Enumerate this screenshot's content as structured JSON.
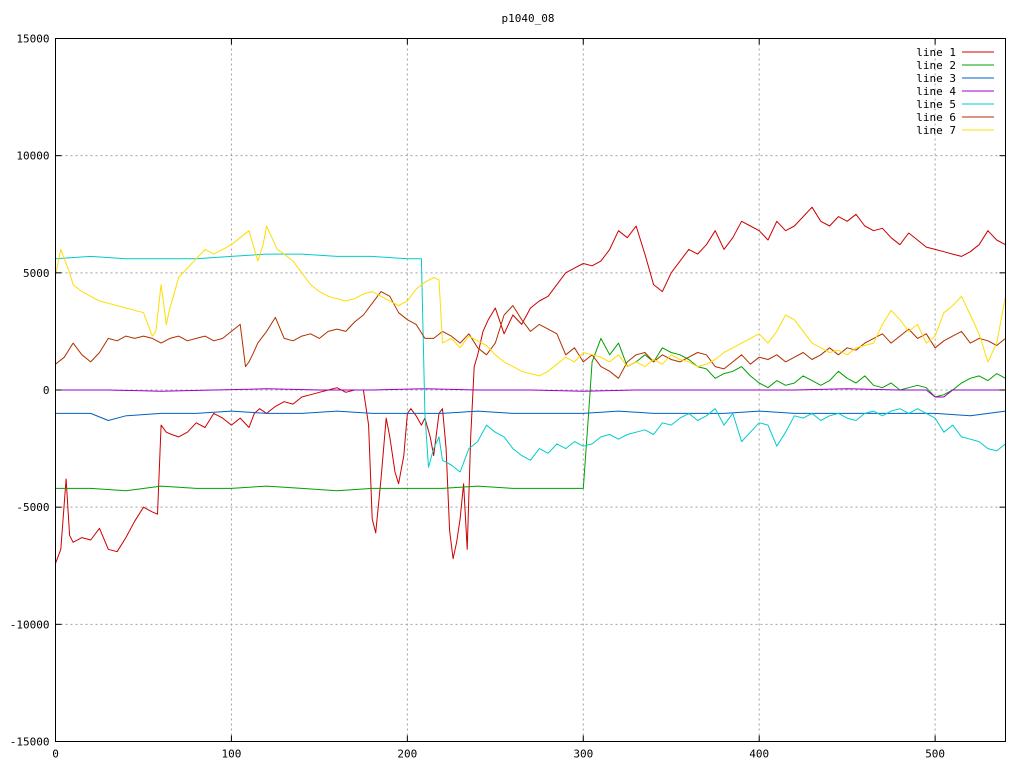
{
  "chart_data": {
    "type": "line",
    "title": "p1040_08",
    "xlabel": "",
    "ylabel": "",
    "xlim": [
      0,
      540
    ],
    "ylim": [
      -15000,
      15000
    ],
    "grid": true,
    "legend_position": "top-right",
    "x_ticks": [
      0,
      100,
      200,
      300,
      400,
      500
    ],
    "x_tick_labels": [
      "0",
      "100",
      "200",
      "300",
      "400",
      "500"
    ],
    "y_ticks": [
      -15000,
      -10000,
      -5000,
      0,
      5000,
      10000,
      15000
    ],
    "y_tick_labels": [
      "-15000",
      "-10000",
      "-5000",
      "0",
      "5000",
      "10000",
      "15000"
    ],
    "series": [
      {
        "name": "line 1",
        "color": "#cc0000",
        "x": [
          0,
          3,
          6,
          8,
          10,
          15,
          20,
          25,
          30,
          35,
          40,
          45,
          50,
          55,
          58,
          60,
          63,
          66,
          70,
          75,
          80,
          85,
          90,
          95,
          100,
          105,
          110,
          113,
          116,
          120,
          125,
          130,
          135,
          140,
          145,
          150,
          155,
          160,
          165,
          170,
          175,
          178,
          180,
          182,
          185,
          188,
          190,
          193,
          195,
          198,
          200,
          202,
          205,
          208,
          210,
          213,
          215,
          218,
          220,
          222,
          224,
          226,
          228,
          230,
          232,
          234,
          236,
          238,
          240,
          243,
          246,
          250,
          255,
          260,
          265,
          270,
          275,
          280,
          285,
          290,
          295,
          300,
          305,
          310,
          315,
          320,
          325,
          330,
          335,
          340,
          345,
          350,
          355,
          360,
          365,
          370,
          375,
          380,
          385,
          390,
          395,
          400,
          405,
          410,
          415,
          420,
          425,
          430,
          435,
          440,
          445,
          450,
          455,
          460,
          465,
          470,
          475,
          480,
          485,
          490,
          495,
          500,
          505,
          510,
          515,
          520,
          525,
          530,
          535,
          540
        ],
        "y": [
          -7400,
          -6800,
          -3800,
          -6200,
          -6500,
          -6300,
          -6400,
          -5900,
          -6800,
          -6900,
          -6300,
          -5600,
          -5000,
          -5200,
          -5300,
          -1500,
          -1800,
          -1900,
          -2000,
          -1800,
          -1400,
          -1600,
          -1000,
          -1200,
          -1500,
          -1200,
          -1600,
          -1000,
          -800,
          -1000,
          -700,
          -500,
          -600,
          -300,
          -200,
          -100,
          0,
          100,
          -100,
          0,
          0,
          -1500,
          -5500,
          -6100,
          -3800,
          -1200,
          -2000,
          -3500,
          -4000,
          -2800,
          -1000,
          -800,
          -1100,
          -1500,
          -1200,
          -2000,
          -2800,
          -1000,
          -800,
          -2500,
          -6000,
          -7200,
          -6500,
          -5500,
          -4000,
          -6800,
          -2000,
          1000,
          1500,
          2500,
          3000,
          3500,
          2400,
          3200,
          2800,
          3500,
          3800,
          4000,
          4500,
          5000,
          5200,
          5400,
          5300,
          5500,
          6000,
          6800,
          6500,
          7000,
          5800,
          4500,
          4200,
          5000,
          5500,
          6000,
          5800,
          6200,
          6800,
          6000,
          6500,
          7200,
          7000,
          6800,
          6400,
          7200,
          6800,
          7000,
          7400,
          7800,
          7200,
          7000,
          7400,
          7200,
          7500,
          7000,
          6800,
          6900,
          6500,
          6200,
          6700,
          6400,
          6100,
          6000,
          5900,
          5800,
          5700,
          5900,
          6200,
          6800,
          6400,
          6200
        ]
      },
      {
        "name": "line 2",
        "color": "#00a000",
        "x": [
          0,
          20,
          40,
          60,
          80,
          100,
          120,
          140,
          160,
          180,
          200,
          220,
          240,
          260,
          280,
          300,
          303,
          305,
          310,
          315,
          320,
          325,
          330,
          335,
          340,
          345,
          350,
          355,
          360,
          365,
          370,
          375,
          380,
          385,
          390,
          395,
          400,
          405,
          410,
          415,
          420,
          425,
          430,
          435,
          440,
          445,
          450,
          455,
          460,
          465,
          470,
          475,
          480,
          485,
          490,
          495,
          500,
          505,
          510,
          515,
          520,
          525,
          530,
          535,
          540
        ],
        "y": [
          -4200,
          -4200,
          -4300,
          -4100,
          -4200,
          -4200,
          -4100,
          -4200,
          -4300,
          -4200,
          -4200,
          -4200,
          -4100,
          -4200,
          -4200,
          -4200,
          -1000,
          1200,
          2200,
          1500,
          2000,
          1000,
          1200,
          1500,
          1200,
          1800,
          1600,
          1500,
          1300,
          1000,
          900,
          500,
          700,
          800,
          1000,
          600,
          300,
          100,
          400,
          200,
          300,
          600,
          400,
          200,
          400,
          800,
          500,
          300,
          600,
          200,
          100,
          300,
          0,
          100,
          200,
          100,
          -300,
          -200,
          0,
          300,
          500,
          600,
          400,
          700,
          500
        ]
      },
      {
        "name": "line 3",
        "color": "#0060c0",
        "x": [
          0,
          20,
          30,
          40,
          60,
          80,
          100,
          120,
          140,
          160,
          180,
          200,
          220,
          240,
          260,
          280,
          300,
          320,
          340,
          360,
          380,
          400,
          420,
          440,
          460,
          480,
          500,
          520,
          540
        ],
        "y": [
          -1000,
          -1000,
          -1300,
          -1100,
          -1000,
          -1000,
          -900,
          -1000,
          -1000,
          -900,
          -1000,
          -1000,
          -1000,
          -900,
          -1000,
          -1000,
          -1000,
          -900,
          -1000,
          -1000,
          -1000,
          -900,
          -1000,
          -1000,
          -1000,
          -1000,
          -1000,
          -1100,
          -900
        ]
      },
      {
        "name": "line 4",
        "color": "#9900cc",
        "x": [
          0,
          30,
          60,
          90,
          120,
          150,
          180,
          210,
          240,
          270,
          300,
          330,
          360,
          390,
          420,
          450,
          480,
          495,
          500,
          505,
          510,
          540
        ],
        "y": [
          0,
          0,
          -50,
          0,
          50,
          0,
          0,
          50,
          0,
          0,
          -50,
          0,
          0,
          0,
          0,
          50,
          0,
          0,
          -300,
          -300,
          0,
          0
        ]
      },
      {
        "name": "line 5",
        "color": "#00cccc",
        "x": [
          0,
          20,
          40,
          60,
          80,
          100,
          120,
          140,
          160,
          180,
          200,
          208,
          210,
          212,
          215,
          218,
          220,
          225,
          230,
          235,
          240,
          245,
          250,
          255,
          260,
          265,
          270,
          275,
          280,
          285,
          290,
          295,
          300,
          305,
          310,
          315,
          320,
          325,
          330,
          335,
          340,
          345,
          350,
          355,
          360,
          365,
          370,
          375,
          380,
          385,
          390,
          395,
          400,
          405,
          410,
          415,
          420,
          425,
          430,
          435,
          440,
          445,
          450,
          455,
          460,
          465,
          470,
          475,
          480,
          485,
          490,
          495,
          500,
          505,
          510,
          515,
          520,
          525,
          530,
          535,
          540
        ],
        "y": [
          5600,
          5700,
          5600,
          5600,
          5600,
          5700,
          5800,
          5800,
          5700,
          5700,
          5600,
          5600,
          -1000,
          -3300,
          -2500,
          -2000,
          -3000,
          -3200,
          -3500,
          -2500,
          -2200,
          -1500,
          -1800,
          -2000,
          -2500,
          -2800,
          -3000,
          -2500,
          -2700,
          -2300,
          -2500,
          -2200,
          -2400,
          -2300,
          -2000,
          -1900,
          -2100,
          -1900,
          -1800,
          -1700,
          -1900,
          -1400,
          -1500,
          -1200,
          -1000,
          -1300,
          -1100,
          -800,
          -1500,
          -1000,
          -2200,
          -1800,
          -1400,
          -1500,
          -2400,
          -1800,
          -1100,
          -1200,
          -1000,
          -1300,
          -1100,
          -1000,
          -1200,
          -1300,
          -1000,
          -900,
          -1100,
          -900,
          -800,
          -1000,
          -800,
          -1000,
          -1200,
          -1800,
          -1500,
          -2000,
          -2100,
          -2200,
          -2500,
          -2600,
          -2300
        ]
      },
      {
        "name": "line 6",
        "color": "#b03000",
        "x": [
          0,
          5,
          10,
          15,
          20,
          25,
          30,
          35,
          40,
          45,
          50,
          55,
          60,
          65,
          70,
          75,
          80,
          85,
          90,
          95,
          100,
          105,
          108,
          110,
          112,
          115,
          120,
          125,
          130,
          135,
          140,
          145,
          150,
          155,
          160,
          165,
          170,
          175,
          180,
          185,
          190,
          195,
          200,
          205,
          210,
          215,
          220,
          225,
          230,
          235,
          240,
          245,
          250,
          255,
          260,
          265,
          270,
          275,
          280,
          285,
          290,
          295,
          300,
          305,
          310,
          315,
          320,
          325,
          330,
          335,
          340,
          345,
          350,
          355,
          360,
          365,
          370,
          375,
          380,
          385,
          390,
          395,
          400,
          405,
          410,
          415,
          420,
          425,
          430,
          435,
          440,
          445,
          450,
          455,
          460,
          465,
          470,
          475,
          480,
          485,
          490,
          495,
          500,
          505,
          510,
          515,
          520,
          525,
          530,
          535,
          540
        ],
        "y": [
          1100,
          1400,
          2000,
          1500,
          1200,
          1600,
          2200,
          2100,
          2300,
          2200,
          2300,
          2200,
          2000,
          2200,
          2300,
          2100,
          2200,
          2300,
          2100,
          2200,
          2500,
          2800,
          1000,
          1200,
          1500,
          2000,
          2500,
          3100,
          2200,
          2100,
          2300,
          2400,
          2200,
          2500,
          2600,
          2500,
          2900,
          3200,
          3700,
          4200,
          4000,
          3300,
          3000,
          2800,
          2200,
          2200,
          2500,
          2300,
          2000,
          2400,
          1800,
          1500,
          2000,
          3200,
          3600,
          3000,
          2500,
          2800,
          2600,
          2400,
          1500,
          1800,
          1200,
          1500,
          1000,
          800,
          500,
          1200,
          1500,
          1600,
          1200,
          1500,
          1300,
          1200,
          1400,
          1600,
          1500,
          1000,
          900,
          1200,
          1500,
          1100,
          1400,
          1300,
          1500,
          1200,
          1400,
          1600,
          1300,
          1500,
          1800,
          1500,
          1800,
          1700,
          2000,
          2200,
          2400,
          2000,
          2300,
          2600,
          2200,
          2400,
          1800,
          2100,
          2300,
          2500,
          2000,
          2200,
          2100,
          1900,
          2200
        ]
      },
      {
        "name": "line 7",
        "color": "#ffdd00",
        "x": [
          0,
          3,
          6,
          8,
          10,
          15,
          20,
          25,
          30,
          35,
          40,
          45,
          50,
          55,
          57,
          60,
          63,
          65,
          67,
          70,
          75,
          80,
          85,
          90,
          95,
          100,
          105,
          110,
          115,
          118,
          120,
          123,
          126,
          130,
          135,
          140,
          145,
          150,
          155,
          160,
          165,
          170,
          175,
          180,
          185,
          190,
          195,
          200,
          205,
          210,
          215,
          218,
          220,
          225,
          230,
          235,
          240,
          245,
          250,
          255,
          260,
          265,
          270,
          275,
          280,
          285,
          290,
          295,
          300,
          305,
          310,
          315,
          320,
          325,
          330,
          335,
          340,
          345,
          350,
          355,
          360,
          365,
          370,
          375,
          380,
          385,
          390,
          395,
          400,
          405,
          410,
          415,
          420,
          425,
          430,
          435,
          440,
          445,
          450,
          455,
          460,
          465,
          470,
          475,
          480,
          485,
          490,
          495,
          500,
          505,
          510,
          515,
          520,
          525,
          530,
          535,
          540
        ],
        "y": [
          4900,
          6000,
          5400,
          5000,
          4500,
          4200,
          4000,
          3800,
          3700,
          3600,
          3500,
          3400,
          3300,
          2300,
          2500,
          4500,
          2800,
          3500,
          4000,
          4800,
          5200,
          5600,
          6000,
          5800,
          6000,
          6200,
          6500,
          6800,
          5500,
          6200,
          7000,
          6500,
          6000,
          5800,
          5500,
          5000,
          4500,
          4200,
          4000,
          3900,
          3800,
          3900,
          4100,
          4200,
          4000,
          3800,
          3600,
          3800,
          4300,
          4600,
          4800,
          4700,
          2000,
          2200,
          1800,
          2300,
          2100,
          1900,
          1500,
          1200,
          1000,
          800,
          700,
          600,
          800,
          1100,
          1400,
          1200,
          1600,
          1500,
          1400,
          1200,
          1500,
          1000,
          1200,
          1000,
          1300,
          1100,
          1500,
          1300,
          1200,
          1000,
          1100,
          1300,
          1600,
          1800,
          2000,
          2200,
          2400,
          2000,
          2500,
          3200,
          3000,
          2500,
          2000,
          1800,
          1600,
          1700,
          1500,
          1800,
          1900,
          2000,
          2800,
          3400,
          3000,
          2500,
          2800,
          2000,
          2300,
          3300,
          3600,
          4000,
          3200,
          2400,
          1200,
          2000,
          4000
        ]
      }
    ]
  }
}
